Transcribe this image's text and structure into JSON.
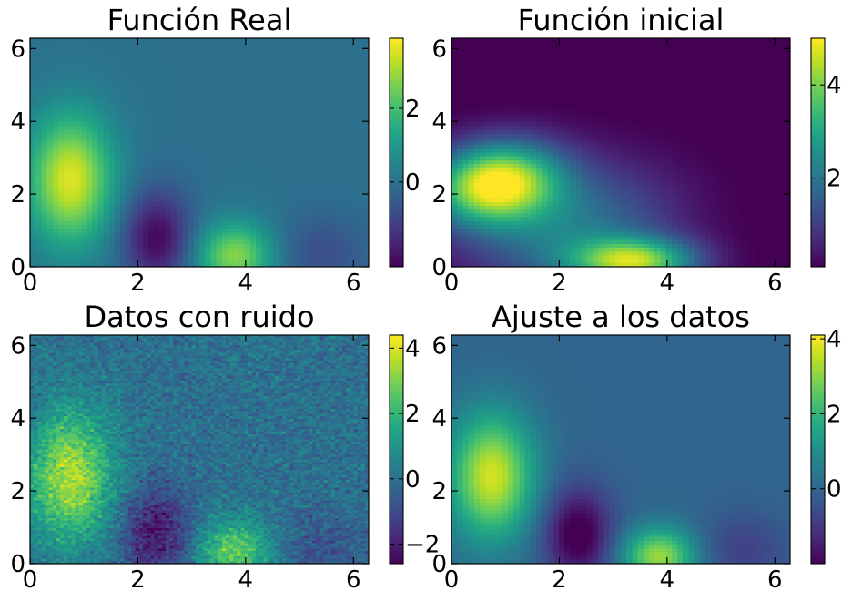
{
  "chart_data": [
    {
      "type": "heatmap",
      "title": "Función Real",
      "xlim": [
        0,
        6.283
      ],
      "ylim": [
        0,
        6.283
      ],
      "xticks": [
        0,
        2,
        4,
        6
      ],
      "yticks": [
        0,
        2,
        4,
        6
      ],
      "colormap": "viridis",
      "colorbar": {
        "min": -2.3,
        "max": 3.9,
        "ticks": [
          0,
          2
        ]
      },
      "noise": 0,
      "components": [
        {
          "amplitude": 3.6,
          "x": 0.75,
          "y": 2.4,
          "sx": 0.55,
          "sy": 1.25
        },
        {
          "amplitude": -2.2,
          "x": 2.35,
          "y": 0.8,
          "sx": 0.45,
          "sy": 0.9
        },
        {
          "amplitude": 2.8,
          "x": 3.8,
          "y": 0.3,
          "sx": 0.5,
          "sy": 0.65
        },
        {
          "amplitude": -0.8,
          "x": 5.4,
          "y": 0.4,
          "sx": 0.6,
          "sy": 0.7
        }
      ]
    },
    {
      "type": "heatmap",
      "title": "Función inicial",
      "xlim": [
        0,
        6.283
      ],
      "ylim": [
        0,
        6.283
      ],
      "xticks": [
        0,
        2,
        4,
        6
      ],
      "yticks": [
        0,
        2,
        4,
        6
      ],
      "colormap": "viridis",
      "colorbar": {
        "min": 0.1,
        "max": 5.0,
        "ticks": [
          2,
          4
        ]
      },
      "noise": 0,
      "components": [
        {
          "amplitude": 4.9,
          "x": 0.8,
          "y": 2.3,
          "sx": 0.85,
          "sy": 0.75,
          "rot": -0.55
        },
        {
          "amplitude": 3.8,
          "x": 3.4,
          "y": 0.15,
          "sx": 0.8,
          "sy": 0.45
        },
        {
          "amplitude": 2.0,
          "x": 2.2,
          "y": 1.0,
          "sx": 1.4,
          "sy": 1.2,
          "rot": -0.6
        }
      ]
    },
    {
      "type": "heatmap",
      "title": "Datos con ruido",
      "xlim": [
        0,
        6.283
      ],
      "ylim": [
        0,
        6.283
      ],
      "xticks": [
        0,
        2,
        4,
        6
      ],
      "yticks": [
        0,
        2,
        4,
        6
      ],
      "colormap": "viridis",
      "colorbar": {
        "min": -2.6,
        "max": 4.4,
        "ticks": [
          -2,
          0,
          2,
          4
        ]
      },
      "noise": 0.55,
      "components": [
        {
          "amplitude": 3.6,
          "x": 0.75,
          "y": 2.4,
          "sx": 0.55,
          "sy": 1.25
        },
        {
          "amplitude": -2.2,
          "x": 2.35,
          "y": 0.8,
          "sx": 0.45,
          "sy": 0.9
        },
        {
          "amplitude": 2.8,
          "x": 3.8,
          "y": 0.3,
          "sx": 0.5,
          "sy": 0.65
        },
        {
          "amplitude": -0.8,
          "x": 5.4,
          "y": 0.4,
          "sx": 0.6,
          "sy": 0.7
        }
      ]
    },
    {
      "type": "heatmap",
      "title": "Ajuste a los datos",
      "xlim": [
        0,
        6.283
      ],
      "ylim": [
        0,
        6.283
      ],
      "xticks": [
        0,
        2,
        4,
        6
      ],
      "yticks": [
        0,
        2,
        4,
        6
      ],
      "colormap": "viridis",
      "colorbar": {
        "min": -2.0,
        "max": 4.1,
        "ticks": [
          0,
          2,
          4
        ]
      },
      "noise": 0,
      "components": [
        {
          "amplitude": 3.7,
          "x": 0.75,
          "y": 2.4,
          "sx": 0.55,
          "sy": 1.2
        },
        {
          "amplitude": -2.3,
          "x": 2.35,
          "y": 0.8,
          "sx": 0.45,
          "sy": 0.9
        },
        {
          "amplitude": 3.2,
          "x": 3.85,
          "y": 0.2,
          "sx": 0.48,
          "sy": 0.55
        },
        {
          "amplitude": -0.8,
          "x": 5.4,
          "y": 0.4,
          "sx": 0.6,
          "sy": 0.7
        }
      ]
    }
  ]
}
